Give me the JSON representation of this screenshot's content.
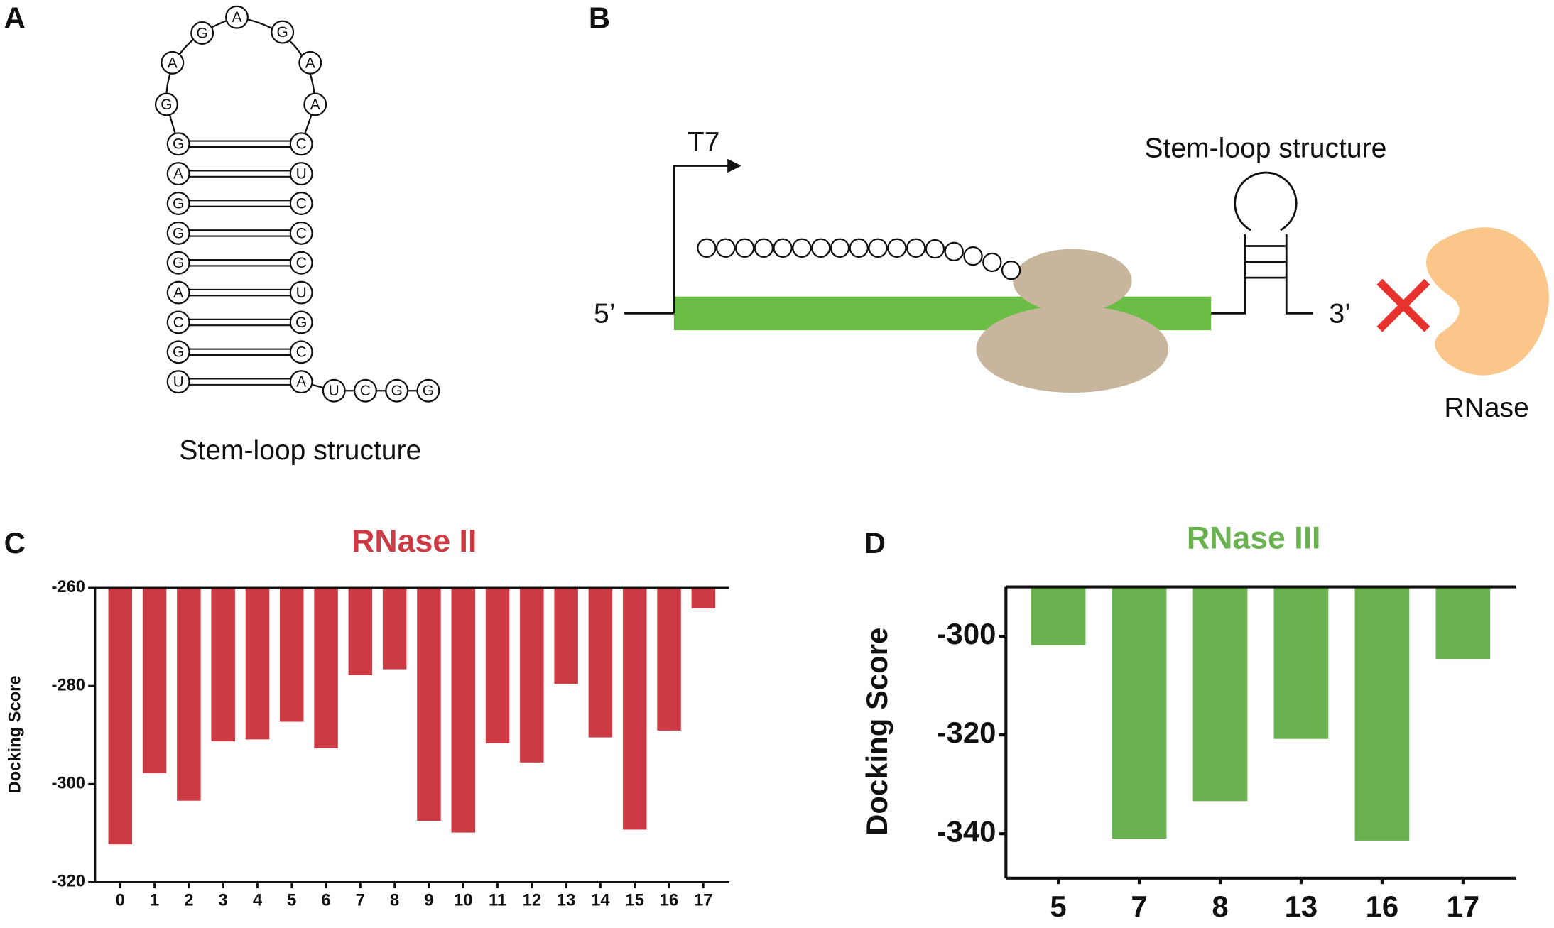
{
  "panels": {
    "labels": [
      "A",
      "B",
      "C",
      "D"
    ]
  },
  "diagram_a": {
    "loop": [
      "G",
      "A",
      "G",
      "A",
      "G",
      "A",
      "A"
    ],
    "stem_left": [
      "G",
      "A",
      "G",
      "G",
      "G",
      "A",
      "C",
      "G",
      "U"
    ],
    "stem_right": [
      "C",
      "U",
      "C",
      "C",
      "C",
      "U",
      "G",
      "C",
      "A"
    ],
    "tail": [
      "U",
      "C",
      "G",
      "G"
    ],
    "caption": "Stem-loop structure"
  },
  "diagram_b": {
    "promoter": "T7",
    "structure": "Stem-loop structure",
    "five_prime": "5’",
    "three_prime": "3’",
    "enzyme": "RNase"
  },
  "chart_data": [
    {
      "type": "bar",
      "title": "RNase II",
      "y_label": "Docking Score",
      "categories": [
        "0",
        "1",
        "2",
        "3",
        "4",
        "5",
        "6",
        "7",
        "8",
        "9",
        "10",
        "11",
        "12",
        "13",
        "14",
        "15",
        "16",
        "17"
      ],
      "values": [
        -312.3,
        -297.8,
        -303.4,
        -291.3,
        -290.9,
        -287.3,
        -292.7,
        -277.8,
        -276.6,
        -307.5,
        -309.9,
        -291.7,
        -295.6,
        -279.6,
        -290.5,
        -309.3,
        -289.1,
        -264.2
      ],
      "color": "#cc3a44",
      "ylim": [
        -320,
        -260
      ],
      "yticks": [
        -260,
        -280,
        -300,
        -320
      ]
    },
    {
      "type": "bar",
      "title": "RNase III",
      "y_label": "Docking Score",
      "categories": [
        "5",
        "7",
        "8",
        "13",
        "16",
        "17"
      ],
      "values": [
        -301.8,
        -341.0,
        -333.4,
        -320.8,
        -341.4,
        -304.6
      ],
      "color": "#6ab150",
      "ylim": [
        -349,
        -290
      ],
      "yticks": [
        -300,
        -320,
        -340
      ]
    }
  ]
}
